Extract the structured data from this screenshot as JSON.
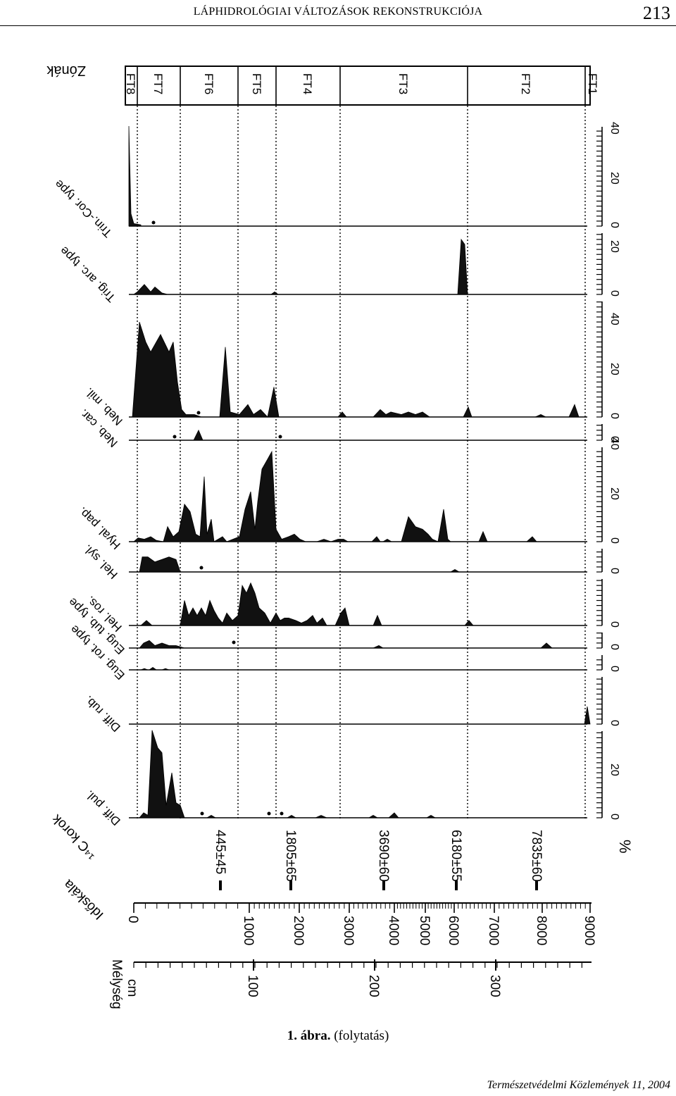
{
  "header": {
    "title": "LÁPHIDROLÓGIAI VÁLTOZÁSOK REKONSTRUKCIÓJA",
    "page_number": "213"
  },
  "caption": {
    "label": "1. ábra.",
    "rest": "(folytatás)"
  },
  "footer": {
    "text": "Természetvédelmi Közlemények 11, 2004"
  },
  "figure": {
    "zones_label": "Zónák",
    "zones": [
      "FT8",
      "FT7",
      "FT6",
      "FT5",
      "FT4",
      "FT3",
      "FT2",
      "FT1"
    ],
    "taxa": [
      "Trin.-Cor. type",
      "Trig. arc. type",
      "Neb. mil.",
      "Neb. car.",
      "Hyal. pap.",
      "Hel. syl.",
      "Hel. ros.",
      "Eug. tub. type",
      "Eug. rot. type",
      "Diff. rub.",
      "Diff. pul."
    ],
    "scale_labels": [
      [
        "0",
        "20",
        "40"
      ],
      [
        "0",
        "20"
      ],
      [
        "0",
        "20",
        "40"
      ],
      [
        "0"
      ],
      [
        "0",
        "20",
        "40"
      ],
      [
        "0"
      ],
      [
        "0"
      ],
      [
        "0"
      ],
      [
        "0"
      ],
      [
        "0"
      ],
      [
        "0",
        "20"
      ]
    ],
    "percent_unit": "%",
    "c14_label": "¹⁴C korok",
    "c14_dates": [
      "445±45",
      "1805±65",
      "3690±60",
      "6180±55",
      "7835±60"
    ],
    "age_label": "Időskála",
    "age_ticks": [
      "0",
      "1000",
      "2000",
      "3000",
      "4000",
      "5000",
      "6000",
      "7000",
      "8000",
      "9000"
    ],
    "depth_label": "Mélység\ncm",
    "depth_ticks": [
      "100",
      "200",
      "300"
    ]
  }
}
